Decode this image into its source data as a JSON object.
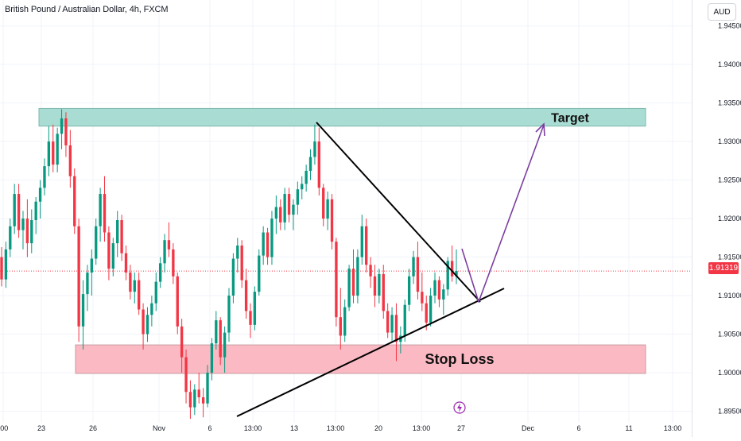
{
  "header": {
    "title": "British Pound / Australian Dollar, 4h, FXCM",
    "currency": "AUD"
  },
  "current_price": {
    "label": "1.91319",
    "value": 1.91319,
    "color": "#f23645"
  },
  "annotations": {
    "target_label": "Target",
    "stop_loss_label": "Stop Loss",
    "target_zone": [
      1.932,
      1.9343
    ],
    "stop_loss_zone": [
      1.8999,
      1.9036
    ],
    "colors": {
      "target": "#a9ddd3",
      "stop": "#fbbac3",
      "arrow": "#7b3fa0",
      "trendline": "#000000"
    }
  },
  "colors": {
    "up": "#089981",
    "down": "#f23645",
    "grid": "#f0f3fa",
    "text": "#131722"
  },
  "chart_data": {
    "type": "candlestick",
    "title": "British Pound / Australian Dollar, 4h, FXCM",
    "ylim": [
      1.8935,
      1.946
    ],
    "y_ticks": [
      "1.89500",
      "1.90000",
      "1.90500",
      "1.91000",
      "1.91500",
      "1.92000",
      "1.92500",
      "1.93000",
      "1.93500",
      "1.94000",
      "1.94500"
    ],
    "x_ticks": [
      ":00",
      "23",
      "26",
      "Nov",
      "6",
      "13:00",
      "13",
      "13:00",
      "20",
      "13:00",
      "27",
      "Dec",
      "6",
      "11",
      "13:00"
    ],
    "grid": true,
    "ohlc": [
      [
        1.915,
        1.9163,
        1.9112,
        1.9121
      ],
      [
        1.9121,
        1.917,
        1.911,
        1.916
      ],
      [
        1.916,
        1.92,
        1.915,
        1.919
      ],
      [
        1.919,
        1.9245,
        1.918,
        1.9232
      ],
      [
        1.9232,
        1.9245,
        1.9175,
        1.9185
      ],
      [
        1.9185,
        1.921,
        1.916,
        1.92
      ],
      [
        1.92,
        1.9225,
        1.915,
        1.9168
      ],
      [
        1.9168,
        1.9212,
        1.9155,
        1.9198
      ],
      [
        1.9198,
        1.9228,
        1.918,
        1.9222
      ],
      [
        1.9222,
        1.925,
        1.92,
        1.924
      ],
      [
        1.924,
        1.9278,
        1.923,
        1.9268
      ],
      [
        1.9268,
        1.932,
        1.9255,
        1.93
      ],
      [
        1.93,
        1.9322,
        1.926,
        1.927
      ],
      [
        1.927,
        1.9318,
        1.926,
        1.931
      ],
      [
        1.931,
        1.9342,
        1.929,
        1.933
      ],
      [
        1.933,
        1.9338,
        1.928,
        1.9295
      ],
      [
        1.9295,
        1.9315,
        1.924,
        1.9255
      ],
      [
        1.9255,
        1.9265,
        1.918,
        1.919
      ],
      [
        1.919,
        1.92,
        1.904,
        1.906
      ],
      [
        1.906,
        1.912,
        1.903,
        1.9102
      ],
      [
        1.9102,
        1.914,
        1.908,
        1.913
      ],
      [
        1.913,
        1.916,
        1.91,
        1.9148
      ],
      [
        1.9148,
        1.92,
        1.914,
        1.919
      ],
      [
        1.919,
        1.924,
        1.917,
        1.9232
      ],
      [
        1.9232,
        1.9255,
        1.917,
        1.9182
      ],
      [
        1.9182,
        1.919,
        1.912,
        1.9135
      ],
      [
        1.9135,
        1.9175,
        1.9125,
        1.9168
      ],
      [
        1.9168,
        1.921,
        1.915,
        1.9198
      ],
      [
        1.9198,
        1.9205,
        1.9145,
        1.9155
      ],
      [
        1.9155,
        1.9165,
        1.912,
        1.913
      ],
      [
        1.913,
        1.914,
        1.9095,
        1.9105
      ],
      [
        1.9105,
        1.913,
        1.909,
        1.912
      ],
      [
        1.912,
        1.913,
        1.9075,
        1.9082
      ],
      [
        1.9082,
        1.909,
        1.903,
        1.905
      ],
      [
        1.905,
        1.9085,
        1.904,
        1.9075
      ],
      [
        1.9075,
        1.91,
        1.906,
        1.909
      ],
      [
        1.909,
        1.913,
        1.908,
        1.9118
      ],
      [
        1.9118,
        1.915,
        1.911,
        1.9142
      ],
      [
        1.9142,
        1.918,
        1.913,
        1.9172
      ],
      [
        1.9172,
        1.9195,
        1.915,
        1.916
      ],
      [
        1.916,
        1.9168,
        1.9115,
        1.9125
      ],
      [
        1.9125,
        1.913,
        1.905,
        1.906
      ],
      [
        1.906,
        1.907,
        1.9,
        1.902
      ],
      [
        1.902,
        1.903,
        1.896,
        1.8975
      ],
      [
        1.8975,
        1.899,
        1.894,
        1.8955
      ],
      [
        1.8955,
        1.8985,
        1.8945,
        1.8978
      ],
      [
        1.8978,
        1.9,
        1.896,
        1.8968
      ],
      [
        1.8968,
        1.898,
        1.8942,
        1.896
      ],
      [
        1.896,
        1.901,
        1.8955,
        1.9
      ],
      [
        1.9,
        1.9045,
        1.899,
        1.9038
      ],
      [
        1.9038,
        1.908,
        1.903,
        1.9068
      ],
      [
        1.9068,
        1.9072,
        1.901,
        1.902
      ],
      [
        1.902,
        1.906,
        1.9,
        1.9052
      ],
      [
        1.9052,
        1.911,
        1.904,
        1.91
      ],
      [
        1.91,
        1.9155,
        1.909,
        1.9148
      ],
      [
        1.9148,
        1.9175,
        1.913,
        1.9165
      ],
      [
        1.9165,
        1.9172,
        1.911,
        1.912
      ],
      [
        1.912,
        1.9135,
        1.907,
        1.908
      ],
      [
        1.908,
        1.909,
        1.9045,
        1.9062
      ],
      [
        1.9062,
        1.9112,
        1.9055,
        1.9105
      ],
      [
        1.9105,
        1.916,
        1.91,
        1.9152
      ],
      [
        1.9152,
        1.919,
        1.914,
        1.9182
      ],
      [
        1.9182,
        1.9188,
        1.914,
        1.915
      ],
      [
        1.915,
        1.921,
        1.914,
        1.92
      ],
      [
        1.92,
        1.923,
        1.918,
        1.9215
      ],
      [
        1.9215,
        1.9225,
        1.9185,
        1.9195
      ],
      [
        1.9195,
        1.924,
        1.9185,
        1.9232
      ],
      [
        1.9232,
        1.924,
        1.9195,
        1.9205
      ],
      [
        1.9205,
        1.9225,
        1.9185,
        1.9218
      ],
      [
        1.9218,
        1.9248,
        1.9205,
        1.9238
      ],
      [
        1.9238,
        1.9255,
        1.9225,
        1.9245
      ],
      [
        1.9245,
        1.927,
        1.9235,
        1.9262
      ],
      [
        1.9262,
        1.929,
        1.925,
        1.928
      ],
      [
        1.928,
        1.9322,
        1.927,
        1.93
      ],
      [
        1.93,
        1.9318,
        1.923,
        1.924
      ],
      [
        1.924,
        1.9245,
        1.919,
        1.92
      ],
      [
        1.92,
        1.9235,
        1.9185,
        1.9225
      ],
      [
        1.9225,
        1.9232,
        1.916,
        1.917
      ],
      [
        1.917,
        1.9175,
        1.906,
        1.9072
      ],
      [
        1.9072,
        1.911,
        1.903,
        1.9048
      ],
      [
        1.9048,
        1.9095,
        1.904,
        1.9085
      ],
      [
        1.9085,
        1.914,
        1.908,
        1.9135
      ],
      [
        1.9135,
        1.916,
        1.909,
        1.91
      ],
      [
        1.91,
        1.916,
        1.909,
        1.915
      ],
      [
        1.915,
        1.9205,
        1.914,
        1.919
      ],
      [
        1.919,
        1.92,
        1.913,
        1.914
      ],
      [
        1.914,
        1.915,
        1.911,
        1.9125
      ],
      [
        1.9125,
        1.914,
        1.9085,
        1.91
      ],
      [
        1.91,
        1.9135,
        1.909,
        1.9128
      ],
      [
        1.9128,
        1.914,
        1.907,
        1.908
      ],
      [
        1.908,
        1.909,
        1.9045,
        1.9052
      ],
      [
        1.9052,
        1.9085,
        1.904,
        1.9075
      ],
      [
        1.9075,
        1.909,
        1.9015,
        1.904
      ],
      [
        1.904,
        1.906,
        1.9025,
        1.9048
      ],
      [
        1.9048,
        1.9095,
        1.904,
        1.9088
      ],
      [
        1.9088,
        1.9135,
        1.908,
        1.9125
      ],
      [
        1.9125,
        1.9158,
        1.9115,
        1.915
      ],
      [
        1.915,
        1.917,
        1.9095,
        1.9105
      ],
      [
        1.9105,
        1.913,
        1.908,
        1.909
      ],
      [
        1.909,
        1.91,
        1.9055,
        1.9065
      ],
      [
        1.9065,
        1.911,
        1.906,
        1.91
      ],
      [
        1.91,
        1.913,
        1.909,
        1.912
      ],
      [
        1.912,
        1.9125,
        1.9085,
        1.9095
      ],
      [
        1.9095,
        1.9115,
        1.9075,
        1.9108
      ],
      [
        1.9108,
        1.915,
        1.91,
        1.9145
      ],
      [
        1.9145,
        1.9165,
        1.9118,
        1.9125
      ],
      [
        1.9125,
        1.916,
        1.9115,
        1.9132
      ]
    ]
  }
}
